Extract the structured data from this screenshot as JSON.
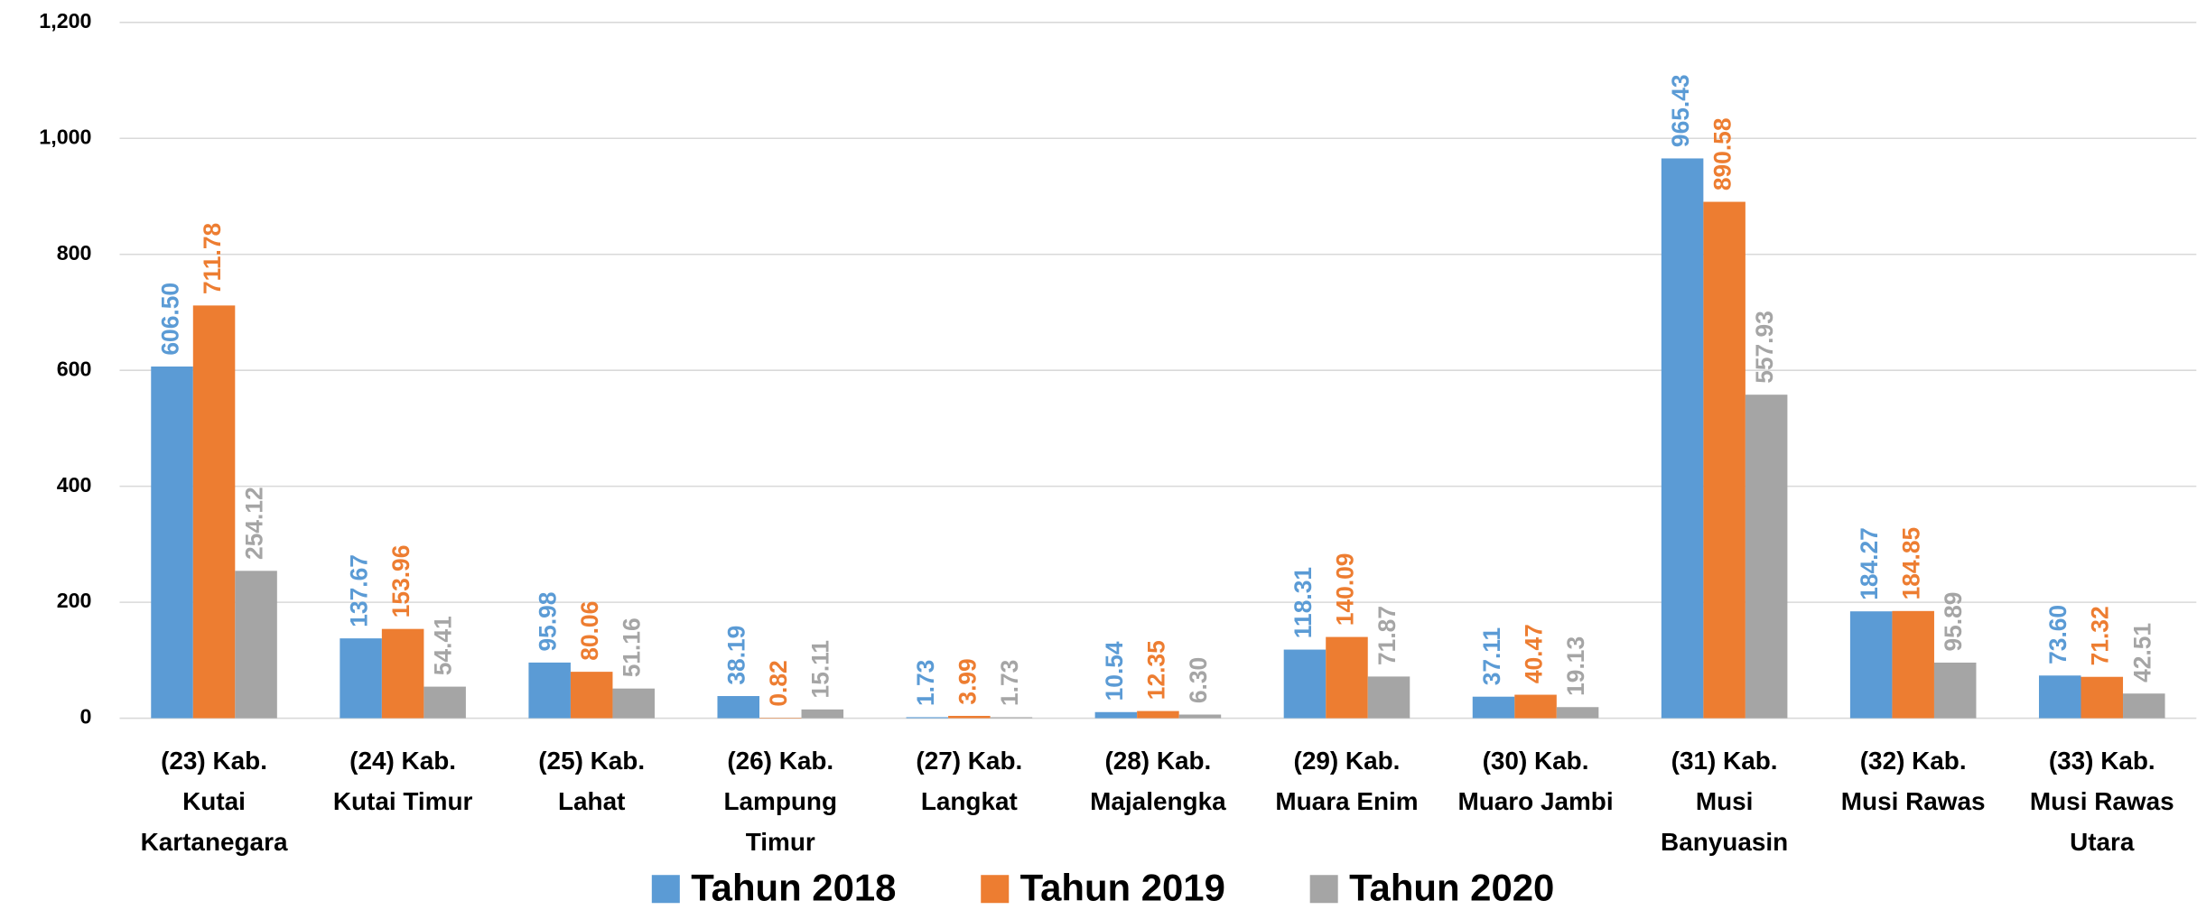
{
  "chart_data": {
    "type": "bar",
    "categories": [
      "(23) Kab. Kutai Kartanegara",
      "(24) Kab. Kutai Timur",
      "(25) Kab. Lahat",
      "(26) Kab. Lampung Timur",
      "(27) Kab. Langkat",
      "(28) Kab. Majalengka",
      "(29) Kab. Muara Enim",
      "(30) Kab. Muaro Jambi",
      "(31) Kab. Musi Banyuasin",
      "(32) Kab. Musi Rawas",
      "(33) Kab. Musi Rawas Utara"
    ],
    "series": [
      {
        "name": "Tahun 2018",
        "color": "#5b9bd5",
        "values": [
          606.5,
          137.67,
          95.98,
          38.19,
          1.73,
          10.54,
          118.31,
          37.11,
          965.43,
          184.27,
          73.6
        ],
        "value_labels": [
          "606.50",
          "137.67",
          "95.98",
          "38.19",
          "1.73",
          "10.54",
          "118.31",
          "37.11",
          "965.43",
          "184.27",
          "73.60"
        ]
      },
      {
        "name": "Tahun 2019",
        "color": "#ed7d31",
        "values": [
          711.78,
          153.96,
          80.06,
          0.82,
          3.99,
          12.35,
          140.09,
          40.47,
          890.58,
          184.85,
          71.32
        ],
        "value_labels": [
          "711.78",
          "153.96",
          "80.06",
          "0.82",
          "3.99",
          "12.35",
          "140.09",
          "40.47",
          "890.58",
          "184.85",
          "71.32"
        ]
      },
      {
        "name": "Tahun 2020",
        "color": "#a5a5a5",
        "values": [
          254.12,
          54.41,
          51.16,
          15.11,
          1.73,
          6.3,
          71.87,
          19.13,
          557.93,
          95.89,
          42.51
        ],
        "value_labels": [
          "254.12",
          "54.41",
          "51.16",
          "15.11",
          "1.73",
          "6.30",
          "71.87",
          "19.13",
          "557.93",
          "95.89",
          "42.51"
        ]
      }
    ],
    "ylim": [
      0,
      1200
    ],
    "yticks": [
      0,
      200,
      400,
      600,
      800,
      {
        "value": 1000,
        "label": "1,000"
      },
      {
        "value": 1200,
        "label": "1,200"
      }
    ],
    "grid": true,
    "legend": "bottom"
  }
}
